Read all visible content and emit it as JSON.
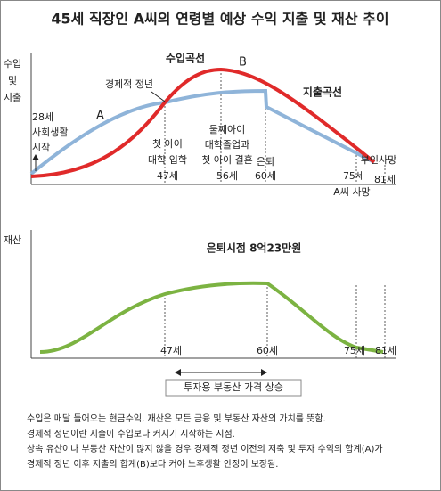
{
  "title": "45세 직장인 A씨의 연령별 예상 수익 지출 및 재산 추이",
  "top": {
    "axis_label": [
      "수입",
      "및",
      "지출"
    ],
    "start_label": [
      "28세",
      "사회생활",
      "시작"
    ],
    "point_a": "A",
    "point_b": "B",
    "retire_age_label": "경제적 정년",
    "income_curve": "수입곡선",
    "expense_curve": "지출곡선",
    "events": [
      {
        "text": [
          "첫 아이",
          "대학 입학"
        ],
        "age": "47세"
      },
      {
        "text": [
          "둘째아이",
          "대학졸업과",
          "첫 아이 결혼"
        ],
        "age": "56세"
      },
      {
        "text": [
          "은퇴"
        ],
        "age": "60세"
      },
      {
        "text": [
          "부인사망"
        ],
        "age": "81세"
      }
    ],
    "age_75": "75세",
    "death": "A씨 사망"
  },
  "bottom": {
    "axis_label": "재산",
    "peak_label": "은퇴시점 8억23만원",
    "ages": [
      "47세",
      "60세",
      "75세",
      "81세"
    ],
    "range_label": "투자용 부동산 가격 상승"
  },
  "notes": [
    "수입은 매달 들어오는 현금수익, 재산은 모든 금융 및 부동산 자산의 가치를 뜻함.",
    "경제적 정년이란 지출이 수입보다 커지기 시작하는 시점.",
    "상속 유산이나 부동산 자산이 많지 않을 경우 경제적 정년 이전의 저축 및 투자 수익의 합계(A)가",
    "경제적 정년 이후 지출의 합계(B)보다 커야 노후생활 안정이 보장됨."
  ]
}
